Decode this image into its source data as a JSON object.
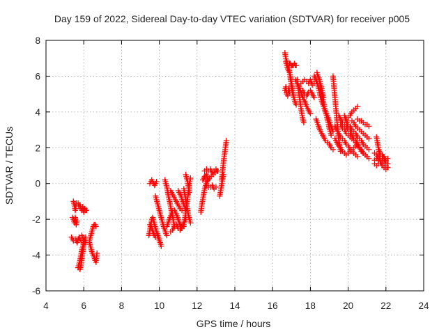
{
  "chart_data": {
    "type": "scatter",
    "title": "Day 159 of 2022, Sidereal Day-to-day VTEC variation (SDTVAR) for receiver p005",
    "xlabel": "GPS time / hours",
    "ylabel": "SDTVAR / TECUs",
    "xlim": [
      4,
      24
    ],
    "ylim": [
      -6,
      8
    ],
    "xticks": [
      "4",
      "6",
      "8",
      "10",
      "12",
      "14",
      "16",
      "18",
      "20",
      "22",
      "24"
    ],
    "yticks": [
      "-6",
      "-4",
      "-2",
      "0",
      "2",
      "4",
      "6",
      "8"
    ],
    "grid": true,
    "marker": "plus",
    "color": "#ff0000",
    "segments": [
      {
        "x": [
          5.45,
          5.5,
          5.55,
          5.6
        ],
        "y": [
          -1.0,
          -1.2,
          -1.5,
          -1.1
        ]
      },
      {
        "x": [
          5.4,
          5.45,
          5.5,
          5.55,
          5.6,
          5.65
        ],
        "y": [
          -1.9,
          -2.0,
          -2.2,
          -1.9,
          -2.3,
          -2.1
        ]
      },
      {
        "x": [
          5.35,
          5.45,
          5.55,
          5.65,
          5.75,
          5.85
        ],
        "y": [
          -3.0,
          -3.2,
          -3.1,
          -3.3,
          -3.0,
          -3.2
        ]
      },
      {
        "x": [
          5.7,
          5.75,
          5.8,
          5.85,
          5.9,
          5.95,
          6.0,
          6.05,
          6.1,
          6.15
        ],
        "y": [
          -1.1,
          -1.3,
          -1.2,
          -1.4,
          -1.5,
          -1.3,
          -1.6,
          -1.4,
          -1.5,
          -1.5
        ]
      },
      {
        "x": [
          5.7,
          5.75,
          5.8,
          5.85,
          5.9,
          5.95,
          6.0,
          6.05,
          6.1
        ],
        "y": [
          -4.7,
          -4.5,
          -4.3,
          -4.0,
          -3.7,
          -3.5,
          -3.3,
          -3.1,
          -3.0
        ]
      },
      {
        "x": [
          5.8,
          5.85,
          5.9,
          5.95,
          6.0,
          6.05
        ],
        "y": [
          -4.8,
          -4.6,
          -4.2,
          -3.8,
          -3.5,
          -3.2
        ]
      },
      {
        "x": [
          5.9,
          5.95,
          6.0,
          6.05,
          6.1
        ],
        "y": [
          -2.9,
          -3.0,
          -3.2,
          -3.1,
          -3.3
        ]
      },
      {
        "x": [
          6.3,
          6.35,
          6.4,
          6.45,
          6.5,
          6.55,
          6.6,
          6.65
        ],
        "y": [
          -3.2,
          -3.0,
          -2.8,
          -2.6,
          -2.4,
          -2.3,
          -2.3,
          -2.4
        ]
      },
      {
        "x": [
          6.3,
          6.35,
          6.4,
          6.45,
          6.5,
          6.55,
          6.6,
          6.65,
          6.7
        ],
        "y": [
          -3.3,
          -3.5,
          -3.7,
          -3.9,
          -4.0,
          -4.1,
          -4.3,
          -4.4,
          -3.9
        ]
      },
      {
        "x": [
          9.5,
          9.55,
          9.6,
          9.65,
          9.7,
          9.75,
          9.8,
          9.85
        ],
        "y": [
          0.0,
          0.1,
          0.2,
          0.1,
          0.0,
          -0.1,
          0.0,
          0.1
        ]
      },
      {
        "x": [
          9.45,
          9.5,
          9.55,
          9.6,
          9.65,
          9.7,
          9.75,
          9.8,
          9.85,
          9.9,
          9.95,
          10.0,
          10.05,
          10.1
        ],
        "y": [
          -2.9,
          -2.6,
          -2.3,
          -2.0,
          -1.9,
          -2.1,
          -2.3,
          -2.5,
          -2.7,
          -2.8,
          -3.0,
          -3.2,
          -3.3,
          -3.5
        ]
      },
      {
        "x": [
          9.5,
          9.6,
          9.7,
          9.8,
          9.9,
          10.0
        ],
        "y": [
          -2.3,
          -2.5,
          -2.8,
          -3.0,
          -2.9,
          -3.1
        ]
      },
      {
        "x": [
          9.8,
          9.85,
          9.9,
          9.95,
          10.0,
          10.05,
          10.1,
          10.15,
          10.2,
          10.25,
          10.3,
          10.35,
          10.4
        ],
        "y": [
          -0.7,
          -0.9,
          -1.1,
          -1.3,
          -1.5,
          -1.7,
          -1.9,
          -2.1,
          -2.3,
          -2.5,
          -2.6,
          -2.8,
          -2.9
        ]
      },
      {
        "x": [
          10.3,
          10.35,
          10.4,
          10.45,
          10.5,
          10.55,
          10.6,
          10.65,
          10.7,
          10.75,
          10.8
        ],
        "y": [
          0.2,
          0.0,
          -0.2,
          -0.5,
          -0.8,
          -1.0,
          -1.3,
          -1.6,
          -1.8,
          -2.1,
          -2.4
        ]
      },
      {
        "x": [
          10.4,
          10.5,
          10.6,
          10.7,
          10.8,
          10.9,
          11.0,
          11.1,
          11.2,
          11.3
        ],
        "y": [
          -2.4,
          -2.1,
          -1.8,
          -1.6,
          -1.5,
          -1.7,
          -2.0,
          -2.3,
          -2.5,
          -2.4
        ]
      },
      {
        "x": [
          10.6,
          10.7,
          10.8,
          10.9,
          11.0,
          11.1,
          11.2
        ],
        "y": [
          -0.4,
          -0.6,
          -0.8,
          -1.0,
          -1.2,
          -1.4,
          -1.5
        ]
      },
      {
        "x": [
          10.6,
          10.7,
          10.8,
          10.9,
          11.0,
          11.1,
          11.2,
          11.3,
          11.4
        ],
        "y": [
          -2.7,
          -2.6,
          -2.4,
          -2.3,
          -2.5,
          -2.6,
          -2.4,
          -2.2,
          -2.0
        ]
      },
      {
        "x": [
          11.0,
          11.05,
          11.1,
          11.15,
          11.2,
          11.25,
          11.3,
          11.35,
          11.4
        ],
        "y": [
          -0.4,
          -0.5,
          -0.6,
          -0.7,
          -0.9,
          -1.0,
          -1.2,
          -1.3,
          -1.5
        ]
      },
      {
        "x": [
          11.3,
          11.35,
          11.4,
          11.45,
          11.5,
          11.55,
          11.6,
          11.65
        ],
        "y": [
          -0.3,
          -0.6,
          -0.9,
          -1.2,
          -1.5,
          -1.8,
          -2.0,
          -2.2
        ]
      },
      {
        "x": [
          11.3,
          11.35,
          11.4,
          11.45,
          11.5,
          11.55,
          11.6,
          11.65
        ],
        "y": [
          -2.3,
          -2.0,
          -1.6,
          -1.2,
          -0.8,
          -0.4,
          0.0,
          0.3
        ]
      },
      {
        "x": [
          11.4,
          11.45,
          11.5,
          11.55,
          11.6
        ],
        "y": [
          0.5,
          0.3,
          0.1,
          -0.2,
          -0.5
        ]
      },
      {
        "x": [
          12.2,
          12.25,
          12.3,
          12.35,
          12.4,
          12.45,
          12.5,
          12.55
        ],
        "y": [
          -1.6,
          -1.2,
          -0.9,
          -0.6,
          -0.3,
          -0.1,
          0.0,
          0.2
        ]
      },
      {
        "x": [
          12.3,
          12.35,
          12.4,
          12.45,
          12.5,
          12.55,
          12.6
        ],
        "y": [
          0.2,
          0.3,
          0.4,
          0.4,
          0.5,
          0.3,
          0.2
        ]
      },
      {
        "x": [
          12.4,
          12.5,
          12.6,
          12.7,
          12.8,
          12.9,
          13.0,
          13.1
        ],
        "y": [
          0.7,
          0.8,
          0.7,
          0.8,
          0.6,
          0.7,
          0.8,
          0.7
        ]
      },
      {
        "x": [
          12.45,
          12.55,
          12.65,
          12.75,
          12.85,
          12.95,
          13.05
        ],
        "y": [
          0.1,
          0.2,
          0.3,
          0.4,
          0.5,
          0.6,
          0.7
        ]
      },
      {
        "x": [
          12.5,
          12.6,
          12.7,
          12.8,
          12.9,
          13.0
        ],
        "y": [
          -0.1,
          -0.2,
          -0.2,
          -0.1,
          -0.3,
          -0.2
        ]
      },
      {
        "x": [
          13.3,
          13.35,
          13.4,
          13.45,
          13.5,
          13.55
        ],
        "y": [
          0.2,
          0.7,
          1.2,
          1.6,
          2.0,
          2.4
        ]
      },
      {
        "x": [
          13.2,
          13.25,
          13.3,
          13.35,
          13.4
        ],
        "y": [
          -0.7,
          -0.4,
          -0.1,
          0.2,
          0.5
        ]
      },
      {
        "x": [
          16.65,
          16.7,
          16.75,
          16.8,
          16.85,
          16.9,
          16.95,
          17.0,
          17.05,
          17.1
        ],
        "y": [
          7.3,
          7.0,
          6.8,
          6.6,
          6.5,
          6.2,
          6.0,
          5.6,
          5.3,
          5.0
        ]
      },
      {
        "x": [
          16.7,
          16.75,
          16.8,
          16.85,
          16.9,
          16.95,
          17.0,
          17.05,
          17.1,
          17.15,
          17.2,
          17.25
        ],
        "y": [
          6.8,
          6.6,
          6.4,
          6.3,
          6.2,
          5.8,
          5.4,
          5.1,
          4.9,
          4.7,
          4.5,
          4.4
        ]
      },
      {
        "x": [
          16.65,
          16.7,
          16.75,
          16.8,
          16.85,
          16.9
        ],
        "y": [
          5.2,
          5.4,
          5.0,
          4.9,
          5.3,
          5.1
        ]
      },
      {
        "x": [
          16.9,
          16.95,
          17.0,
          17.05,
          17.1,
          17.15,
          17.2,
          17.25
        ],
        "y": [
          6.7,
          6.7,
          6.6,
          6.6,
          6.6,
          6.7,
          6.6,
          6.6
        ]
      },
      {
        "x": [
          17.2,
          17.3,
          17.4,
          17.5,
          17.6,
          17.7,
          17.8,
          17.9,
          18.0
        ],
        "y": [
          5.8,
          5.6,
          5.4,
          5.1,
          4.8,
          4.6,
          4.3,
          4.1,
          3.9
        ]
      },
      {
        "x": [
          17.3,
          17.35,
          17.4,
          17.45,
          17.5,
          17.55,
          17.6,
          17.65
        ],
        "y": [
          5.8,
          5.4,
          5.0,
          4.6,
          4.2,
          3.9,
          3.6,
          3.4
        ]
      },
      {
        "x": [
          17.5,
          17.6,
          17.7,
          17.8,
          17.9,
          18.0,
          18.1,
          18.2,
          18.3
        ],
        "y": [
          5.6,
          5.7,
          5.8,
          5.7,
          5.6,
          5.8,
          5.5,
          5.6,
          5.7
        ]
      },
      {
        "x": [
          17.6,
          17.7,
          17.8,
          17.9,
          18.0,
          18.1,
          18.2
        ],
        "y": [
          5.2,
          5.0,
          4.9,
          5.1,
          5.2,
          5.0,
          4.8
        ]
      },
      {
        "x": [
          18.2,
          18.3,
          18.4,
          18.5,
          18.6,
          18.7,
          18.8,
          18.9,
          19.0,
          19.1,
          19.2
        ],
        "y": [
          6.0,
          5.8,
          5.5,
          5.0,
          4.6,
          4.3,
          4.0,
          3.8,
          3.5,
          3.2,
          2.9
        ]
      },
      {
        "x": [
          18.35,
          18.4,
          18.45,
          18.5,
          18.55,
          18.6,
          18.65,
          18.7
        ],
        "y": [
          6.2,
          6.0,
          5.9,
          5.7,
          5.5,
          5.3,
          5.0,
          4.8
        ]
      },
      {
        "x": [
          18.3,
          18.4,
          18.5,
          18.6,
          18.7,
          18.8,
          18.9,
          19.0,
          19.1,
          19.2
        ],
        "y": [
          3.6,
          3.3,
          3.0,
          2.8,
          2.6,
          2.4,
          2.3,
          2.2,
          2.0,
          1.9
        ]
      },
      {
        "x": [
          18.5,
          18.6,
          18.7,
          18.8,
          18.9,
          19.0,
          19.1
        ],
        "y": [
          5.4,
          5.0,
          4.5,
          4.0,
          3.6,
          3.1,
          2.7
        ]
      },
      {
        "x": [
          19.2,
          19.25,
          19.3,
          19.35,
          19.4,
          19.45,
          19.5,
          19.55,
          19.6
        ],
        "y": [
          6.0,
          5.4,
          4.8,
          4.2,
          3.6,
          3.0,
          2.5,
          2.1,
          1.8
        ]
      },
      {
        "x": [
          19.3,
          19.4,
          19.5,
          19.6,
          19.7,
          19.8,
          19.9,
          20.0,
          20.1,
          20.2,
          20.3,
          20.4,
          20.5
        ],
        "y": [
          3.2,
          3.0,
          2.8,
          2.6,
          2.5,
          2.4,
          2.2,
          2.1,
          1.9,
          1.8,
          1.7,
          1.6,
          1.5
        ]
      },
      {
        "x": [
          19.3,
          19.4,
          19.5,
          19.6,
          19.7,
          19.8,
          19.9,
          20.0,
          20.1,
          20.2,
          20.3,
          20.4
        ],
        "y": [
          2.5,
          2.3,
          2.1,
          2.0,
          1.8,
          1.7,
          1.6,
          1.7,
          1.8,
          1.9,
          2.0,
          2.1
        ]
      },
      {
        "x": [
          19.5,
          19.6,
          19.7,
          19.8,
          19.9,
          20.0,
          20.1,
          20.2,
          20.3,
          20.4,
          20.5,
          20.6,
          20.7,
          20.8,
          20.9,
          21.0,
          21.1
        ],
        "y": [
          3.8,
          3.6,
          3.4,
          3.3,
          3.2,
          3.0,
          2.9,
          2.7,
          2.5,
          2.4,
          2.2,
          2.0,
          1.9,
          1.7,
          1.6,
          1.5,
          1.4
        ]
      },
      {
        "x": [
          19.6,
          19.7,
          19.8,
          19.9,
          20.0,
          20.1,
          20.2,
          20.3,
          20.4,
          20.5,
          20.6,
          20.7,
          20.8,
          20.9,
          21.0
        ],
        "y": [
          3.3,
          3.1,
          3.0,
          2.8,
          2.7,
          2.6,
          2.5,
          2.4,
          2.3,
          2.1,
          2.0,
          1.8,
          1.7,
          1.6,
          1.5
        ]
      },
      {
        "x": [
          19.8,
          19.9,
          20.0,
          20.1,
          20.2,
          20.3,
          20.4,
          20.5,
          20.6,
          20.7,
          20.8,
          20.9,
          21.0,
          21.1
        ],
        "y": [
          3.8,
          3.5,
          3.3,
          3.2,
          3.0,
          2.9,
          2.8,
          2.6,
          2.5,
          2.4,
          2.2,
          2.1,
          2.0,
          1.9
        ]
      },
      {
        "x": [
          19.9,
          20.0,
          20.1,
          20.2,
          20.3,
          20.4,
          20.5
        ],
        "y": [
          3.6,
          3.7,
          3.8,
          4.0,
          4.1,
          4.2,
          4.3
        ]
      },
      {
        "x": [
          20.2,
          20.3,
          20.4,
          20.5,
          20.6,
          20.7,
          20.8,
          20.9,
          21.0,
          21.1
        ],
        "y": [
          3.5,
          3.4,
          3.2,
          3.1,
          3.0,
          2.9,
          2.8,
          2.7,
          2.6,
          2.5
        ]
      },
      {
        "x": [
          20.5,
          20.6,
          20.7,
          20.8,
          20.9,
          21.0,
          21.1
        ],
        "y": [
          3.6,
          3.5,
          3.5,
          3.4,
          3.3,
          3.3,
          3.2
        ]
      },
      {
        "x": [
          21.4,
          21.5,
          21.6,
          21.7,
          21.8,
          21.9,
          22.0,
          22.1
        ],
        "y": [
          1.7,
          1.6,
          1.4,
          1.3,
          1.2,
          1.1,
          1.0,
          0.9
        ]
      },
      {
        "x": [
          21.4,
          21.5,
          21.6,
          21.7,
          21.8,
          21.9,
          22.0,
          22.1
        ],
        "y": [
          1.3,
          1.4,
          1.5,
          1.3,
          1.4,
          1.5,
          1.3,
          1.4
        ]
      },
      {
        "x": [
          21.5,
          21.55,
          21.6,
          21.65,
          21.7
        ],
        "y": [
          2.6,
          2.3,
          2.0,
          1.8,
          1.5
        ]
      },
      {
        "x": [
          21.6,
          21.7,
          21.8,
          21.9,
          22.0,
          22.1
        ],
        "y": [
          1.9,
          1.7,
          1.6,
          1.4,
          1.2,
          1.1
        ]
      },
      {
        "x": [
          21.4,
          21.5,
          21.6,
          21.7,
          21.8,
          21.9,
          22.0,
          22.1
        ],
        "y": [
          1.1,
          1.0,
          1.1,
          1.2,
          1.0,
          0.9,
          0.8,
          0.9
        ]
      }
    ]
  }
}
